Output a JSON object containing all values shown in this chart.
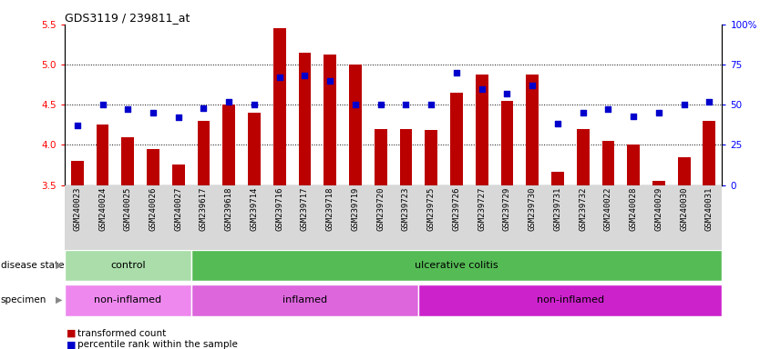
{
  "title": "GDS3119 / 239811_at",
  "samples": [
    "GSM240023",
    "GSM240024",
    "GSM240025",
    "GSM240026",
    "GSM240027",
    "GSM239617",
    "GSM239618",
    "GSM239714",
    "GSM239716",
    "GSM239717",
    "GSM239718",
    "GSM239719",
    "GSM239720",
    "GSM239723",
    "GSM239725",
    "GSM239726",
    "GSM239727",
    "GSM239729",
    "GSM239730",
    "GSM239731",
    "GSM239732",
    "GSM240022",
    "GSM240028",
    "GSM240029",
    "GSM240030",
    "GSM240031"
  ],
  "bar_values": [
    3.8,
    4.25,
    4.1,
    3.95,
    3.75,
    4.3,
    4.5,
    4.4,
    5.45,
    5.15,
    5.12,
    5.0,
    4.2,
    4.2,
    4.18,
    4.65,
    4.88,
    4.55,
    4.88,
    3.67,
    4.2,
    4.05,
    4.0,
    3.55,
    3.85,
    4.3
  ],
  "percentile_values": [
    37,
    50,
    47,
    45,
    42,
    48,
    52,
    50,
    67,
    68,
    65,
    50,
    50,
    50,
    50,
    70,
    60,
    57,
    62,
    38,
    45,
    47,
    43,
    45,
    50,
    52
  ],
  "bar_color": "#bb0000",
  "dot_color": "#0000cc",
  "ylim_left": [
    3.5,
    5.5
  ],
  "ylim_right": [
    0,
    100
  ],
  "yticks_left": [
    3.5,
    4.0,
    4.5,
    5.0,
    5.5
  ],
  "yticks_right": [
    0,
    25,
    50,
    75,
    100
  ],
  "ytick_right_labels": [
    "0",
    "25",
    "50",
    "75",
    "100%"
  ],
  "dotted_lines": [
    4.0,
    4.5,
    5.0
  ],
  "disease_state_groups": [
    {
      "label": "control",
      "start": 0,
      "end": 5,
      "color": "#aaddaa"
    },
    {
      "label": "ulcerative colitis",
      "start": 5,
      "end": 26,
      "color": "#55bb55"
    }
  ],
  "specimen_groups": [
    {
      "label": "non-inflamed",
      "start": 0,
      "end": 5,
      "color": "#ee88ee"
    },
    {
      "label": "inflamed",
      "start": 5,
      "end": 14,
      "color": "#dd66dd"
    },
    {
      "label": "non-inflamed",
      "start": 14,
      "end": 26,
      "color": "#cc22cc"
    }
  ],
  "legend_items": [
    {
      "label": "transformed count",
      "color": "#bb0000"
    },
    {
      "label": "percentile rank within the sample",
      "color": "#0000cc"
    }
  ],
  "background_color": "#ffffff",
  "tick_label_fontsize": 6.5,
  "title_fontsize": 9
}
